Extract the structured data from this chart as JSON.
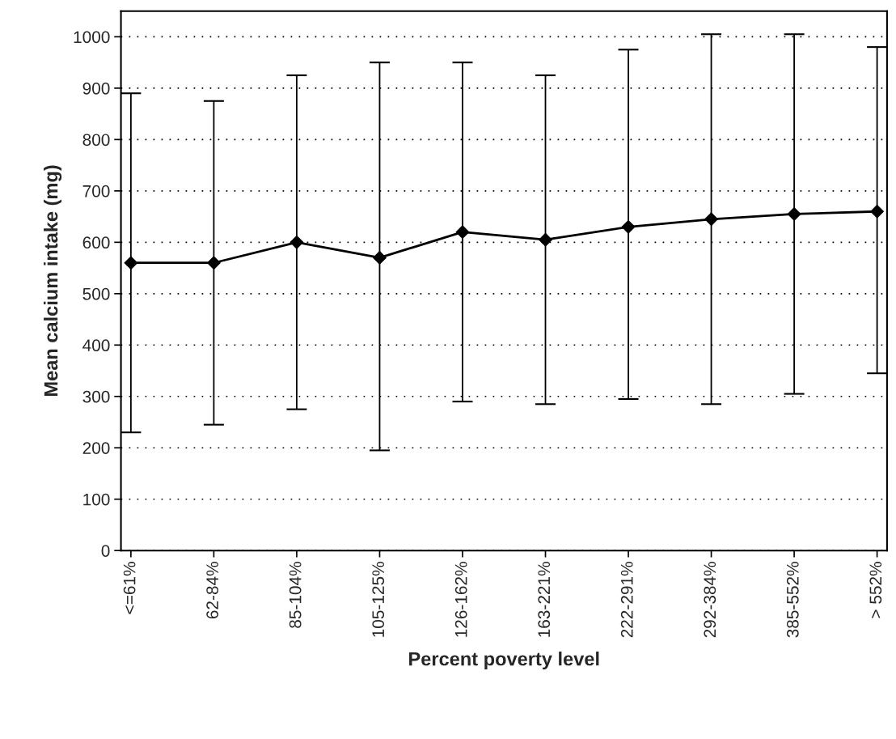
{
  "chart_data": {
    "type": "line",
    "xlabel": "Percent poverty level",
    "ylabel": "Mean calcium intake (mg)",
    "categories": [
      "<=61%",
      "62-84%",
      "85-104%",
      "105-125%",
      "126-162%",
      "163-221%",
      "222-291%",
      "292-384%",
      "385-552%",
      "> 552%"
    ],
    "series": [
      {
        "color": "#000000",
        "values": [
          560,
          560,
          600,
          570,
          620,
          605,
          630,
          645,
          655,
          660
        ],
        "errors": [
          [
            230,
            890
          ],
          [
            245,
            875
          ],
          [
            275,
            925
          ],
          [
            195,
            950
          ],
          [
            290,
            950
          ],
          [
            285,
            925
          ],
          [
            295,
            975
          ],
          [
            285,
            1005
          ],
          [
            305,
            1005
          ],
          [
            345,
            980
          ]
        ]
      }
    ],
    "ylim": [
      0,
      1050
    ],
    "yticks": [
      0,
      100,
      200,
      300,
      400,
      500,
      600,
      700,
      800,
      900,
      1000
    ],
    "grid": "y",
    "marker": "diamond",
    "line_style": "solid",
    "legend": false
  }
}
